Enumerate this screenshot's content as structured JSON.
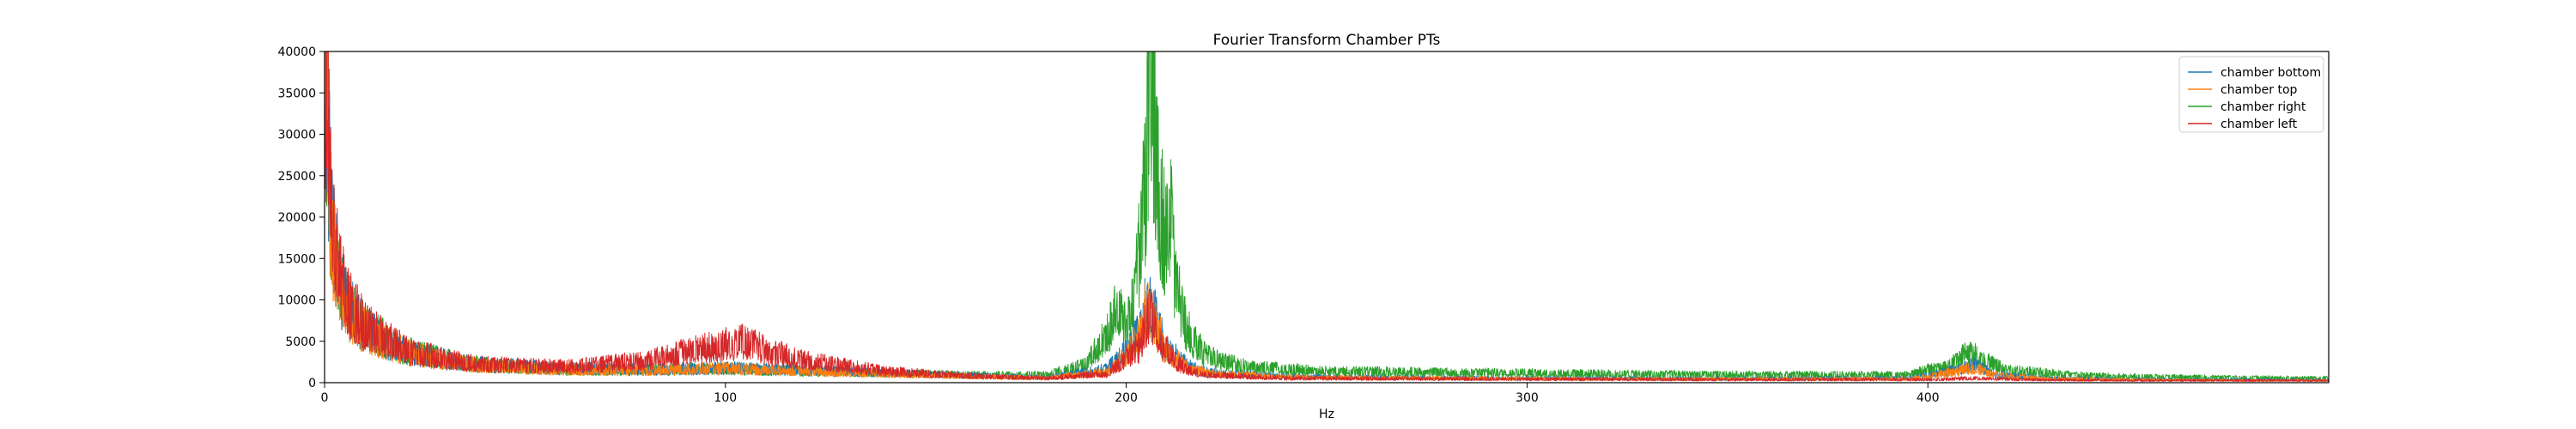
{
  "chart_data": {
    "type": "line",
    "title": "Fourier Transform Chamber PTs",
    "xlabel": "Hz",
    "ylabel": "",
    "xlim": [
      0,
      500
    ],
    "ylim": [
      0,
      40000
    ],
    "xticks": [
      0,
      100,
      200,
      300,
      400
    ],
    "yticks": [
      0,
      5000,
      10000,
      15000,
      20000,
      25000,
      30000,
      35000,
      40000
    ],
    "legend_position": "top-right",
    "series": [
      {
        "name": "chamber bottom",
        "color": "#1f77b4",
        "points": [
          [
            0,
            40000
          ],
          [
            1,
            26000
          ],
          [
            2,
            17000
          ],
          [
            4,
            11000
          ],
          [
            6,
            8500
          ],
          [
            10,
            6200
          ],
          [
            15,
            4800
          ],
          [
            20,
            3600
          ],
          [
            30,
            2600
          ],
          [
            40,
            2000
          ],
          [
            60,
            1600
          ],
          [
            80,
            1500
          ],
          [
            100,
            1700
          ],
          [
            120,
            1400
          ],
          [
            140,
            1100
          ],
          [
            160,
            800
          ],
          [
            180,
            600
          ],
          [
            195,
            1500
          ],
          [
            200,
            3500
          ],
          [
            203,
            5500
          ],
          [
            205,
            9000
          ],
          [
            207,
            7500
          ],
          [
            210,
            4000
          ],
          [
            215,
            2000
          ],
          [
            220,
            1200
          ],
          [
            240,
            700
          ],
          [
            260,
            600
          ],
          [
            300,
            500
          ],
          [
            350,
            450
          ],
          [
            395,
            500
          ],
          [
            400,
            800
          ],
          [
            408,
            1600
          ],
          [
            412,
            2000
          ],
          [
            416,
            1000
          ],
          [
            430,
            500
          ],
          [
            460,
            350
          ],
          [
            500,
            300
          ]
        ]
      },
      {
        "name": "chamber top",
        "color": "#ff7f0e",
        "points": [
          [
            0,
            40000
          ],
          [
            1,
            25000
          ],
          [
            2,
            16500
          ],
          [
            4,
            10800
          ],
          [
            6,
            8300
          ],
          [
            10,
            6000
          ],
          [
            15,
            4600
          ],
          [
            20,
            3500
          ],
          [
            30,
            2500
          ],
          [
            40,
            1900
          ],
          [
            60,
            1500
          ],
          [
            80,
            1400
          ],
          [
            100,
            1600
          ],
          [
            120,
            1300
          ],
          [
            140,
            1000
          ],
          [
            160,
            700
          ],
          [
            180,
            550
          ],
          [
            195,
            1200
          ],
          [
            200,
            3000
          ],
          [
            203,
            5000
          ],
          [
            205,
            8500
          ],
          [
            207,
            7000
          ],
          [
            210,
            3500
          ],
          [
            215,
            1800
          ],
          [
            220,
            1100
          ],
          [
            240,
            650
          ],
          [
            260,
            550
          ],
          [
            300,
            450
          ],
          [
            350,
            400
          ],
          [
            395,
            450
          ],
          [
            400,
            700
          ],
          [
            408,
            1400
          ],
          [
            412,
            1700
          ],
          [
            416,
            900
          ],
          [
            430,
            450
          ],
          [
            460,
            300
          ],
          [
            500,
            250
          ]
        ]
      },
      {
        "name": "chamber right",
        "color": "#2ca02c",
        "points": [
          [
            0,
            40000
          ],
          [
            1,
            26500
          ],
          [
            2,
            17500
          ],
          [
            4,
            11200
          ],
          [
            6,
            8700
          ],
          [
            10,
            6300
          ],
          [
            15,
            4900
          ],
          [
            20,
            3700
          ],
          [
            30,
            2700
          ],
          [
            40,
            2000
          ],
          [
            60,
            1500
          ],
          [
            80,
            1400
          ],
          [
            100,
            1600
          ],
          [
            120,
            1300
          ],
          [
            140,
            1100
          ],
          [
            160,
            900
          ],
          [
            180,
            900
          ],
          [
            190,
            2000
          ],
          [
            195,
            5500
          ],
          [
            198,
            8500
          ],
          [
            200,
            6000
          ],
          [
            202,
            9000
          ],
          [
            204,
            18000
          ],
          [
            205,
            26000
          ],
          [
            206,
            40000
          ],
          [
            207,
            30000
          ],
          [
            208,
            22000
          ],
          [
            210,
            15000
          ],
          [
            211,
            22000
          ],
          [
            212,
            12000
          ],
          [
            215,
            6000
          ],
          [
            220,
            3000
          ],
          [
            230,
            1800
          ],
          [
            250,
            1300
          ],
          [
            300,
            1100
          ],
          [
            350,
            900
          ],
          [
            395,
            900
          ],
          [
            400,
            1500
          ],
          [
            405,
            1700
          ],
          [
            410,
            3500
          ],
          [
            414,
            2500
          ],
          [
            420,
            1400
          ],
          [
            440,
            800
          ],
          [
            470,
            600
          ],
          [
            500,
            500
          ]
        ]
      },
      {
        "name": "chamber left",
        "color": "#d62728",
        "points": [
          [
            0,
            40000
          ],
          [
            1,
            28000
          ],
          [
            2,
            18000
          ],
          [
            4,
            11500
          ],
          [
            6,
            9000
          ],
          [
            10,
            6500
          ],
          [
            15,
            5000
          ],
          [
            20,
            3800
          ],
          [
            30,
            2700
          ],
          [
            40,
            2100
          ],
          [
            60,
            1800
          ],
          [
            80,
            2500
          ],
          [
            90,
            3500
          ],
          [
            100,
            4300
          ],
          [
            105,
            4600
          ],
          [
            110,
            3700
          ],
          [
            120,
            2500
          ],
          [
            140,
            1300
          ],
          [
            160,
            800
          ],
          [
            180,
            500
          ],
          [
            195,
            1000
          ],
          [
            200,
            2800
          ],
          [
            203,
            3800
          ],
          [
            205,
            6500
          ],
          [
            206,
            8500
          ],
          [
            207,
            6800
          ],
          [
            209,
            4200
          ],
          [
            212,
            2500
          ],
          [
            215,
            1500
          ],
          [
            220,
            900
          ],
          [
            240,
            500
          ],
          [
            260,
            450
          ],
          [
            300,
            400
          ],
          [
            350,
            350
          ],
          [
            400,
            350
          ],
          [
            410,
            500
          ],
          [
            430,
            300
          ],
          [
            460,
            250
          ],
          [
            500,
            250
          ]
        ]
      }
    ]
  }
}
